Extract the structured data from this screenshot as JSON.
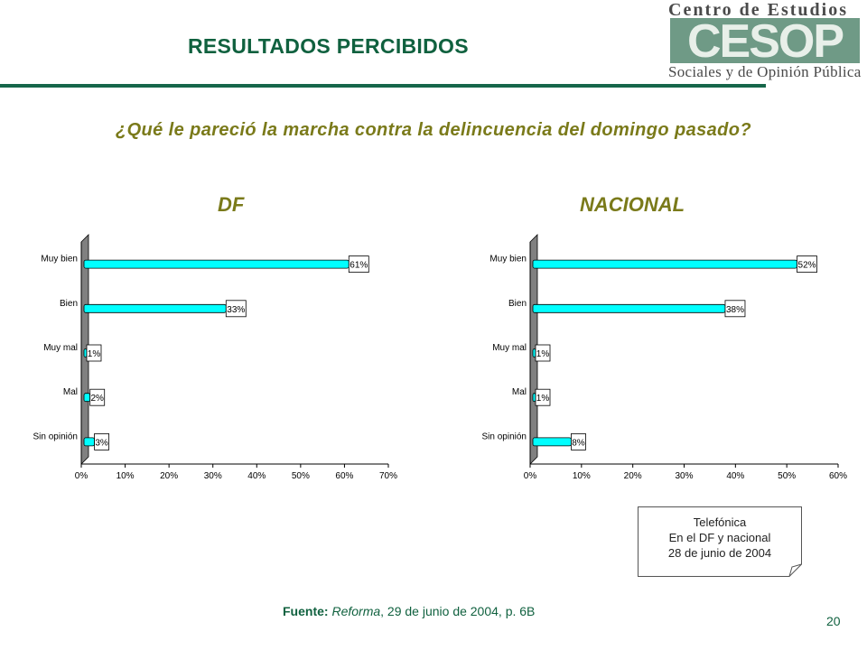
{
  "header": {
    "title": "RESULTADOS PERCIBIDOS",
    "logo_line1": "Centro de Estudios",
    "logo_wordmark": "CESOP",
    "logo_line3": "Sociales y de Opinión Pública"
  },
  "question": "¿Qué le pareció la marcha contra la delincuencia del domingo pasado?",
  "colors": {
    "bar": "#00ffff",
    "wall": "#808080",
    "title_green": "#10613f",
    "olive": "#7a7a1a"
  },
  "chart_data": [
    {
      "type": "bar",
      "orientation": "horizontal",
      "title": "DF",
      "categories": [
        "Muy bien",
        "Bien",
        "Muy mal",
        "Mal",
        "Sin opinión"
      ],
      "values": [
        61,
        33,
        1,
        2,
        3
      ],
      "data_labels": [
        "61%",
        "33%",
        "1%",
        "2%",
        "3%"
      ],
      "xlim": [
        0,
        70
      ],
      "xticks": [
        "0%",
        "10%",
        "20%",
        "30%",
        "40%",
        "50%",
        "60%",
        "70%"
      ],
      "xlabel": "",
      "ylabel": ""
    },
    {
      "type": "bar",
      "orientation": "horizontal",
      "title": "NACIONAL",
      "categories": [
        "Muy bien",
        "Bien",
        "Muy mal",
        "Mal",
        "Sin opinión"
      ],
      "values": [
        52,
        38,
        1,
        1,
        8
      ],
      "data_labels": [
        "52%",
        "38%",
        "1%",
        "1%",
        "8%"
      ],
      "xlim": [
        0,
        60
      ],
      "xticks": [
        "0%",
        "10%",
        "20%",
        "30%",
        "40%",
        "50%",
        "60%"
      ],
      "xlabel": "",
      "ylabel": ""
    }
  ],
  "note": {
    "line1": "Telefónica",
    "line2": "En el DF y nacional",
    "line3": "28 de junio de 2004"
  },
  "source": {
    "label": "Fuente:",
    "publication": "Reforma",
    "detail": ", 29 de junio de 2004, p. 6B"
  },
  "page_number": "20"
}
